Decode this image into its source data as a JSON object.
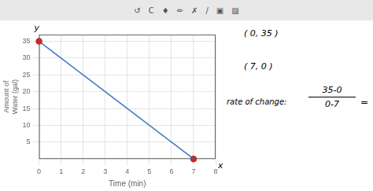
{
  "chart_data": {
    "type": "line",
    "x": [
      0,
      7
    ],
    "series": [
      {
        "values": [
          35,
          0
        ],
        "color": "#3a7abf",
        "colors": [
          "#cc2222",
          "#cc2222"
        ],
        "marker": "circle"
      }
    ],
    "xlim": [
      0,
      8
    ],
    "ylim": [
      0,
      37
    ],
    "xticks": [
      0,
      1,
      2,
      3,
      4,
      5,
      6,
      7,
      8
    ],
    "yticks": [
      5,
      10,
      15,
      20,
      25,
      30,
      35
    ],
    "xlabel": "Time (min)",
    "ylabel": "Amount of\nWater (gal)",
    "grid": true,
    "annotations": {
      "toolbar": [
        "↺",
        "C",
        "♦",
        "✏",
        "✗",
        "/",
        "▣",
        "▨"
      ],
      "axis_letters": {
        "y": "y",
        "x": "x"
      },
      "point_labels": [
        "( 0, 35 )",
        "( 7, 0 )"
      ],
      "rate_label": "rate of change:",
      "fraction_num": "35-0",
      "fraction_den": "0-7",
      "equals": "="
    }
  }
}
